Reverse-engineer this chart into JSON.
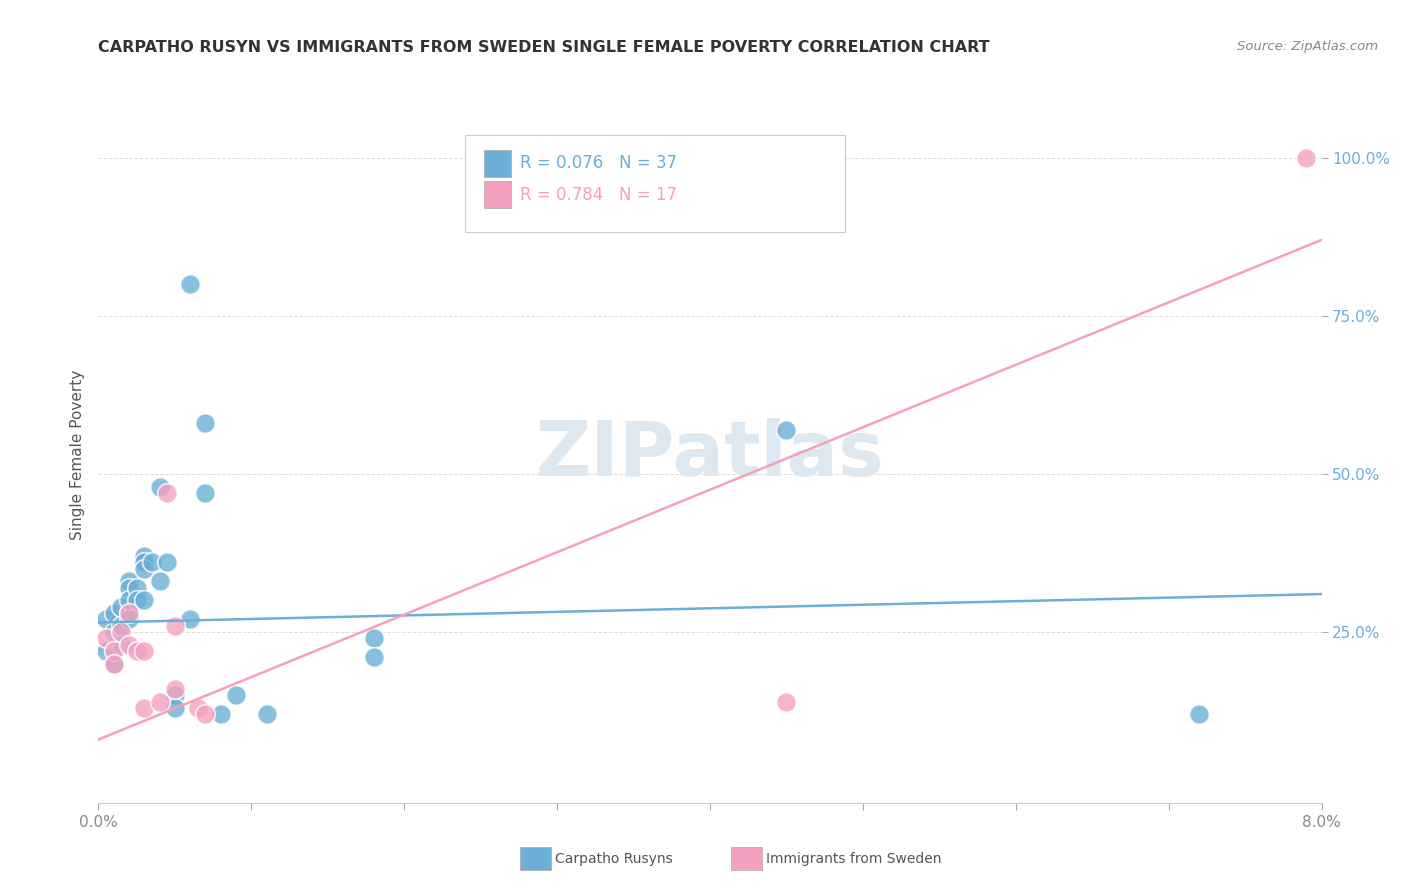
{
  "title": "CARPATHO RUSYN VS IMMIGRANTS FROM SWEDEN SINGLE FEMALE POVERTY CORRELATION CHART",
  "source": "Source: ZipAtlas.com",
  "ylabel": "Single Female Poverty",
  "xlim": [
    0.0,
    0.08
  ],
  "ylim": [
    -0.02,
    1.08
  ],
  "xticks": [
    0.0,
    0.01,
    0.02,
    0.03,
    0.04,
    0.05,
    0.06,
    0.07,
    0.08
  ],
  "xticklabels": [
    "0.0%",
    "",
    "",
    "",
    "",
    "",
    "",
    "",
    "8.0%"
  ],
  "ytick_positions": [
    0.25,
    0.5,
    0.75,
    1.0
  ],
  "yticklabels": [
    "25.0%",
    "50.0%",
    "75.0%",
    "100.0%"
  ],
  "blue_color": "#6baed6",
  "pink_color": "#f4a0c0",
  "blue_r": 0.076,
  "blue_n": 37,
  "pink_r": 0.784,
  "pink_n": 17,
  "watermark": "ZIPatlas",
  "legend_label_blue": "Carpatho Rusyns",
  "legend_label_pink": "Immigrants from Sweden",
  "blue_x": [
    0.0005,
    0.0005,
    0.001,
    0.001,
    0.001,
    0.0015,
    0.0015,
    0.0015,
    0.002,
    0.002,
    0.002,
    0.002,
    0.002,
    0.0025,
    0.0025,
    0.003,
    0.003,
    0.003,
    0.003,
    0.003,
    0.0035,
    0.004,
    0.004,
    0.0045,
    0.005,
    0.005,
    0.006,
    0.006,
    0.007,
    0.007,
    0.008,
    0.009,
    0.011,
    0.018,
    0.018,
    0.045,
    0.072
  ],
  "blue_y": [
    0.27,
    0.22,
    0.28,
    0.25,
    0.2,
    0.29,
    0.26,
    0.23,
    0.33,
    0.32,
    0.28,
    0.27,
    0.3,
    0.32,
    0.3,
    0.36,
    0.3,
    0.37,
    0.36,
    0.35,
    0.36,
    0.33,
    0.48,
    0.36,
    0.15,
    0.13,
    0.27,
    0.8,
    0.58,
    0.47,
    0.12,
    0.15,
    0.12,
    0.24,
    0.21,
    0.57,
    0.12
  ],
  "pink_x": [
    0.0005,
    0.001,
    0.001,
    0.0015,
    0.002,
    0.002,
    0.0025,
    0.003,
    0.003,
    0.004,
    0.0045,
    0.005,
    0.005,
    0.0065,
    0.007,
    0.045,
    0.079
  ],
  "pink_y": [
    0.24,
    0.22,
    0.2,
    0.25,
    0.23,
    0.28,
    0.22,
    0.13,
    0.22,
    0.14,
    0.47,
    0.16,
    0.26,
    0.13,
    0.12,
    0.14,
    1.0
  ],
  "blue_trend_x": [
    0.0,
    0.08
  ],
  "blue_trend_y": [
    0.265,
    0.31
  ],
  "pink_trend_x": [
    0.0,
    0.08
  ],
  "pink_trend_y": [
    0.08,
    0.87
  ],
  "grid_color": "#dddddd",
  "title_color": "#333333",
  "source_color": "#888888",
  "ylabel_color": "#555555",
  "tick_color": "#888888",
  "watermark_color": "#dde8f0",
  "legend_border_color": "#cccccc"
}
